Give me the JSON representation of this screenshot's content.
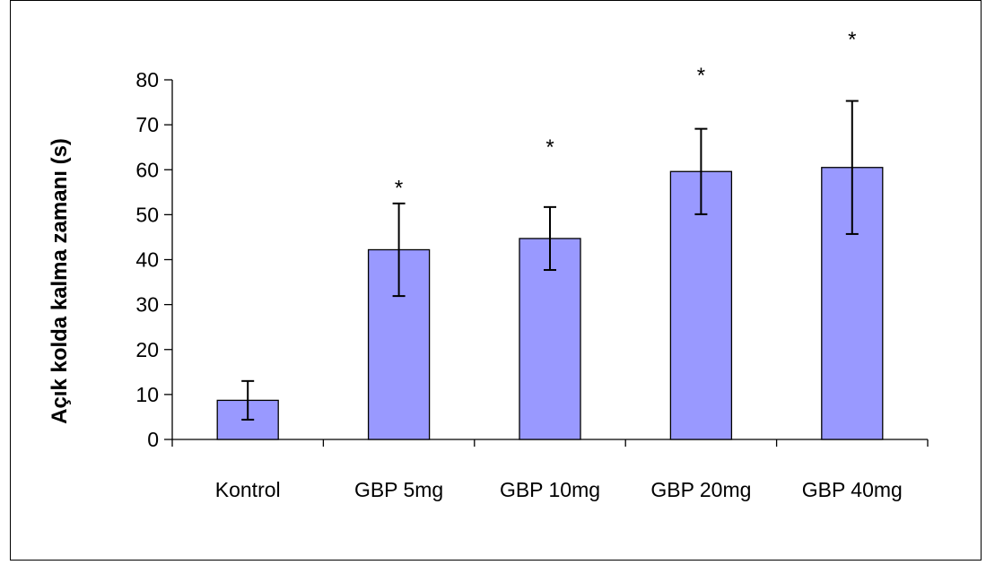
{
  "chart_data": {
    "type": "bar",
    "title": "",
    "xlabel": "",
    "ylabel": "Açık kolda kalma zamanı (s)",
    "ylim": [
      0,
      80
    ],
    "yticks": [
      0,
      10,
      20,
      30,
      40,
      50,
      60,
      70,
      80
    ],
    "categories": [
      "Kontrol",
      "GBP 5mg",
      "GBP 10mg",
      "GBP 20mg",
      "GBP 40mg"
    ],
    "values": [
      8.7,
      42.2,
      44.7,
      59.6,
      60.5
    ],
    "error": [
      4.3,
      10.3,
      7.0,
      9.5,
      14.8
    ],
    "significance": [
      "",
      "*",
      "*",
      "*",
      "*"
    ],
    "significance_y": [
      null,
      58,
      67,
      83,
      91
    ],
    "bar_color": "#9999ff",
    "grid": false,
    "legend": "none"
  }
}
